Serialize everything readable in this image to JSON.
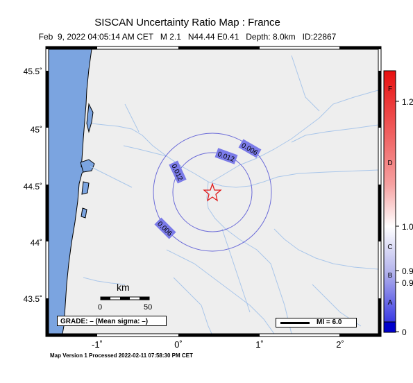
{
  "header": {
    "title": "SISCAN Uncertainty Ratio Map : France",
    "subtitle": "Feb  9, 2022 04:05:14 AM CET   M 2.1   N44.44 E0.41   Depth: 8.0km   ID:22867"
  },
  "map": {
    "y_axis_labels": [
      "45.5˚",
      "45˚",
      "44.5˚",
      "44˚",
      "43.5˚"
    ],
    "x_axis_labels": [
      "-1˚",
      "0˚",
      "1˚",
      "2˚"
    ],
    "contour_labels": [
      "0.006",
      "0.012",
      "0.012",
      "0.006"
    ],
    "epicenter": {
      "lat": 44.44,
      "lon": 0.41
    },
    "scale_bar": {
      "unit": "km",
      "tick_start": "0",
      "tick_end": "50"
    },
    "grade_text": "GRADE: – (Mean sigma: –)",
    "mi_legend": "MI = 6.0",
    "colors": {
      "ocean": "#7ba4e0",
      "land": "#eeeeee",
      "rivers": "#a9c6ea",
      "contours": "#6a6ad8",
      "epicenter": "#e01a1a"
    }
  },
  "colorbar": {
    "value_labels": [
      "1.2",
      "1.0",
      "0.9",
      "0.9",
      "0"
    ],
    "grade_letters": [
      "F",
      "D",
      "C",
      "B",
      "A"
    ]
  },
  "footer": "Map Version 1 Processed 2022-02-11 07:58:30 PM CET"
}
